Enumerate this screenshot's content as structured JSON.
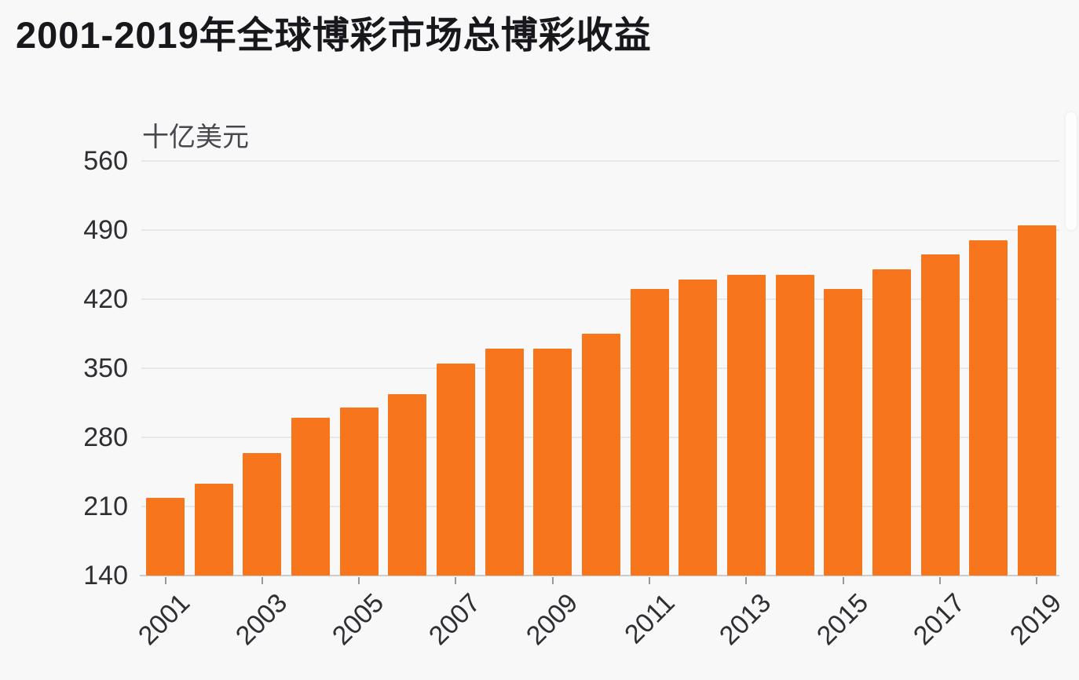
{
  "chart_data": {
    "type": "bar",
    "title": "2001-2019年全球博彩市场总博彩收益",
    "unit_label": "十亿美元",
    "ylabel": "十亿美元",
    "xlabel": "",
    "categories": [
      "2001",
      "2002",
      "2003",
      "2004",
      "2005",
      "2006",
      "2007",
      "2008",
      "2009",
      "2010",
      "2011",
      "2012",
      "2013",
      "2014",
      "2015",
      "2016",
      "2017",
      "2018",
      "2019"
    ],
    "values": [
      219,
      233,
      264,
      300,
      310,
      324,
      355,
      370,
      370,
      385,
      430,
      440,
      445,
      445,
      430,
      450,
      465,
      480,
      495
    ],
    "ylim": [
      140,
      560
    ],
    "y_ticks": [
      140,
      210,
      280,
      350,
      420,
      490,
      560
    ],
    "x_tick_labels": [
      "2001",
      "2003",
      "2005",
      "2007",
      "2009",
      "2011",
      "2013",
      "2015",
      "2017",
      "2019"
    ],
    "grid": true,
    "legend": false,
    "bar_color": "#f7751d"
  },
  "colors": {
    "background": "#f8f8f9",
    "bar": "#f7751d",
    "gridline": "#e7e7eb",
    "axis_line": "#cbcbd0",
    "tick": "#98989e",
    "title_text": "#17171c",
    "axis_text": "#2e2e33",
    "unit_text": "#47474d"
  }
}
